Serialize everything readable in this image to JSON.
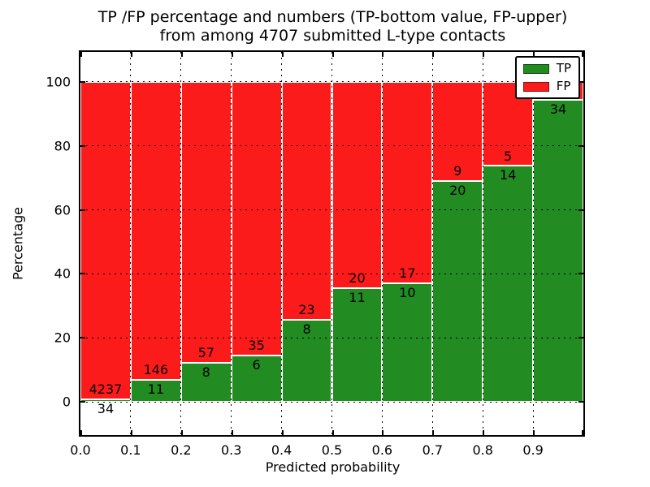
{
  "chart_data": {
    "type": "bar",
    "stacked": true,
    "title": "TP /FP percentage and numbers (TP-bottom value, FP-upper) from among 4707 submitted L-type contacts",
    "title_line1": "TP /FP percentage and numbers (TP-bottom value, FP-upper)",
    "title_line2": "from among 4707 submitted L-type contacts",
    "xlabel": "Predicted probability",
    "ylabel": "Percentage",
    "total_submitted_contacts": 4707,
    "x_tick_labels": [
      "0.0",
      "0.1",
      "0.2",
      "0.3",
      "0.4",
      "0.5",
      "0.6",
      "0.7",
      "0.8",
      "0.9"
    ],
    "y_ticks": [
      0,
      20,
      40,
      60,
      80,
      100
    ],
    "xlim": [
      0.0,
      1.0
    ],
    "ylim": [
      -10.3,
      109.3
    ],
    "num_bins": 10,
    "bin_width": 0.1,
    "grid": true,
    "categories": [
      "0.0-0.1",
      "0.1-0.2",
      "0.2-0.3",
      "0.3-0.4",
      "0.4-0.5",
      "0.5-0.6",
      "0.6-0.7",
      "0.7-0.8",
      "0.8-0.9",
      "0.9-1.0"
    ],
    "series": [
      {
        "name": "TP",
        "counts": [
          34,
          11,
          8,
          6,
          8,
          11,
          10,
          20,
          14,
          34
        ]
      },
      {
        "name": "FP",
        "counts": [
          4237,
          146,
          57,
          35,
          23,
          20,
          17,
          9,
          5,
          null
        ]
      }
    ],
    "tp_pct": [
      0.8,
      7.0,
      12.3,
      14.6,
      25.8,
      35.5,
      37.0,
      69.0,
      73.7,
      94.4
    ],
    "bar_labels": {
      "tp": [
        "34",
        "11",
        "8",
        "6",
        "8",
        "11",
        "10",
        "20",
        "14",
        "34"
      ],
      "fp": [
        "4237",
        "146",
        "57",
        "35",
        "23",
        "20",
        "17",
        "9",
        "5",
        ""
      ]
    },
    "notes": "last-bin FP label hidden behind legend",
    "legend": {
      "position": "upper right",
      "items": [
        {
          "label": "TP",
          "color": "#228b22"
        },
        {
          "label": "FP",
          "color": "#fc1b1b"
        }
      ]
    },
    "colors": {
      "tp": "#228b22",
      "fp": "#fc1b1b",
      "grid": "#000000",
      "spine": "#000000",
      "bar_edge": "#ffffff",
      "background": "#ffffff"
    }
  }
}
